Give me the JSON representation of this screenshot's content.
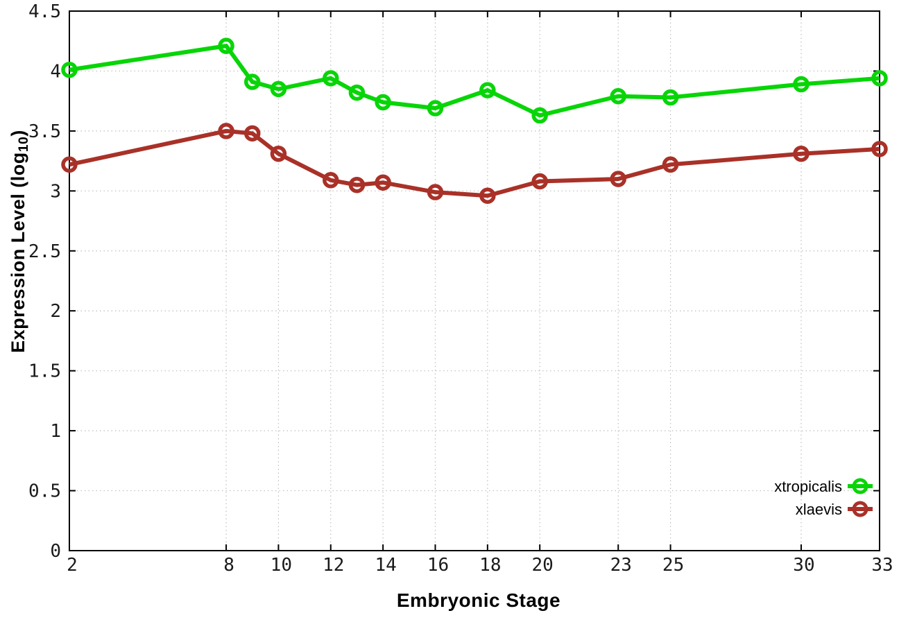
{
  "chart_data": {
    "type": "line",
    "title": "",
    "xlabel": "Embryonic Stage",
    "ylabel": "Expression Level (log10)",
    "ylabel_parts": {
      "prefix": "Expression Level (log",
      "sub": "10",
      "suffix": ")"
    },
    "x": [
      2,
      8,
      9,
      10,
      12,
      13,
      14,
      16,
      18,
      20,
      23,
      25,
      30,
      33
    ],
    "series": [
      {
        "name": "xtropicalis",
        "color": "#08d508",
        "marker": "open-circle",
        "values": [
          4.01,
          4.21,
          3.91,
          3.85,
          3.94,
          3.82,
          3.74,
          3.69,
          3.84,
          3.63,
          3.79,
          3.78,
          3.89,
          3.94
        ]
      },
      {
        "name": "xlaevis",
        "color": "#a93128",
        "marker": "open-circle",
        "values": [
          3.22,
          3.5,
          3.48,
          3.31,
          3.09,
          3.05,
          3.07,
          2.99,
          2.96,
          3.08,
          3.1,
          3.22,
          3.31,
          3.35
        ]
      }
    ],
    "xlim": [
      2,
      33
    ],
    "ylim": [
      0,
      4.5
    ],
    "xticks": [
      2,
      8,
      10,
      12,
      14,
      16,
      18,
      20,
      23,
      25,
      30,
      33
    ],
    "xtick_labels": [
      "2",
      "8",
      "10",
      "12",
      "14",
      "16",
      "18",
      "20",
      "23",
      "25",
      "30",
      "33"
    ],
    "yticks": [
      0,
      0.5,
      1,
      1.5,
      2,
      2.5,
      3,
      3.5,
      4,
      4.5
    ],
    "ytick_labels": [
      "0",
      "0.5",
      "1",
      "1.5",
      "2",
      "2.5",
      "3",
      "3.5",
      "4",
      "4.5"
    ],
    "grid": true,
    "grid_style": "dotted",
    "legend_position": "inside-bottom-right",
    "background_color": "#ffffff",
    "border_color": "#000000",
    "grid_color": "#bdbdbd",
    "tick_label_color": "#1a1a1a"
  }
}
